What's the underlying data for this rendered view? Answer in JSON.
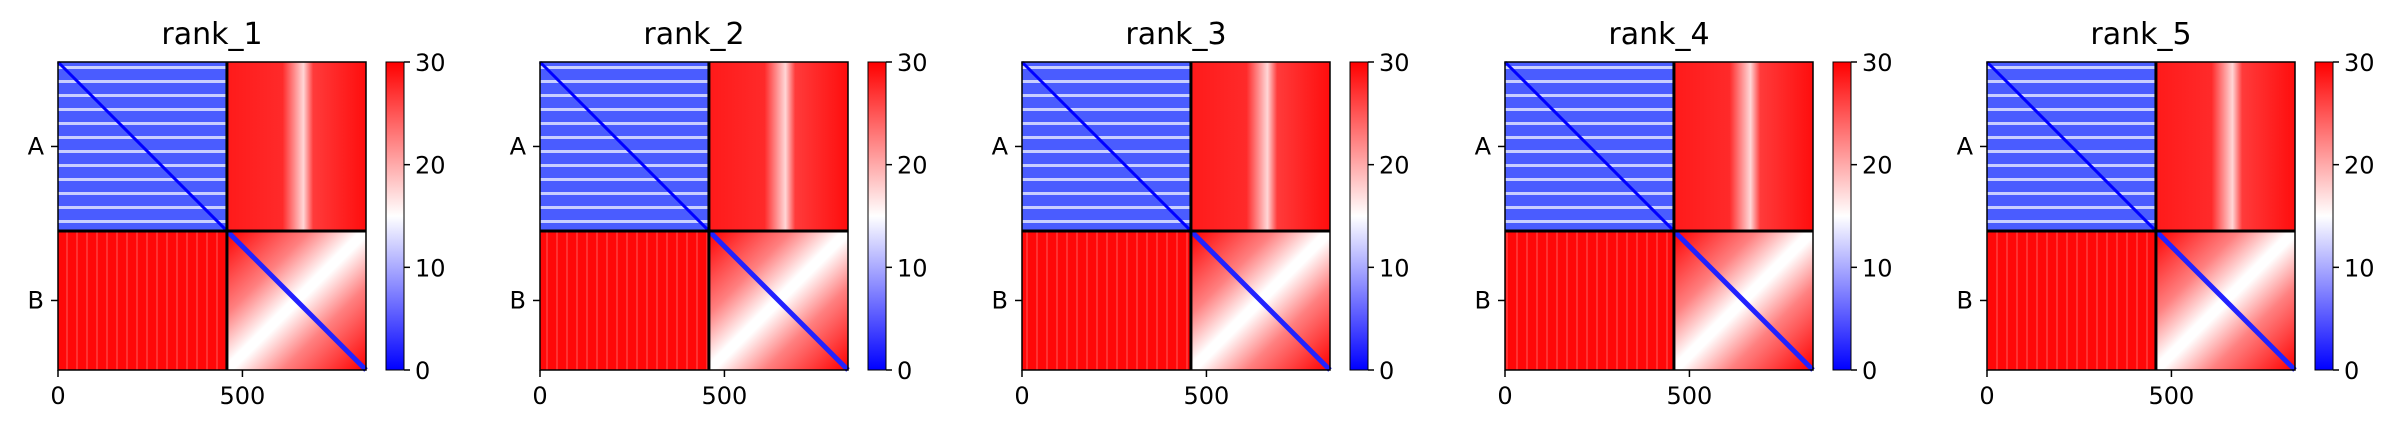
{
  "chart_data": {
    "type": "heatmap",
    "colormap": {
      "name": "bwr",
      "low": "#0000ff",
      "mid": "#ffffff",
      "high": "#ff0000"
    },
    "color_range": [
      0,
      30
    ],
    "colorbar_ticks": [
      "0",
      "10",
      "20",
      "30"
    ],
    "x_range": [
      0,
      835
    ],
    "x_ticks": [
      {
        "value": 0,
        "label": "0"
      },
      {
        "value": 500,
        "label": "500"
      }
    ],
    "chain_boundary": 458,
    "y_tick_labels": [
      "A",
      "B"
    ],
    "panels": [
      {
        "title": "rank_1"
      },
      {
        "title": "rank_2"
      },
      {
        "title": "rank_3"
      },
      {
        "title": "rank_4"
      },
      {
        "title": "rank_5"
      }
    ]
  }
}
